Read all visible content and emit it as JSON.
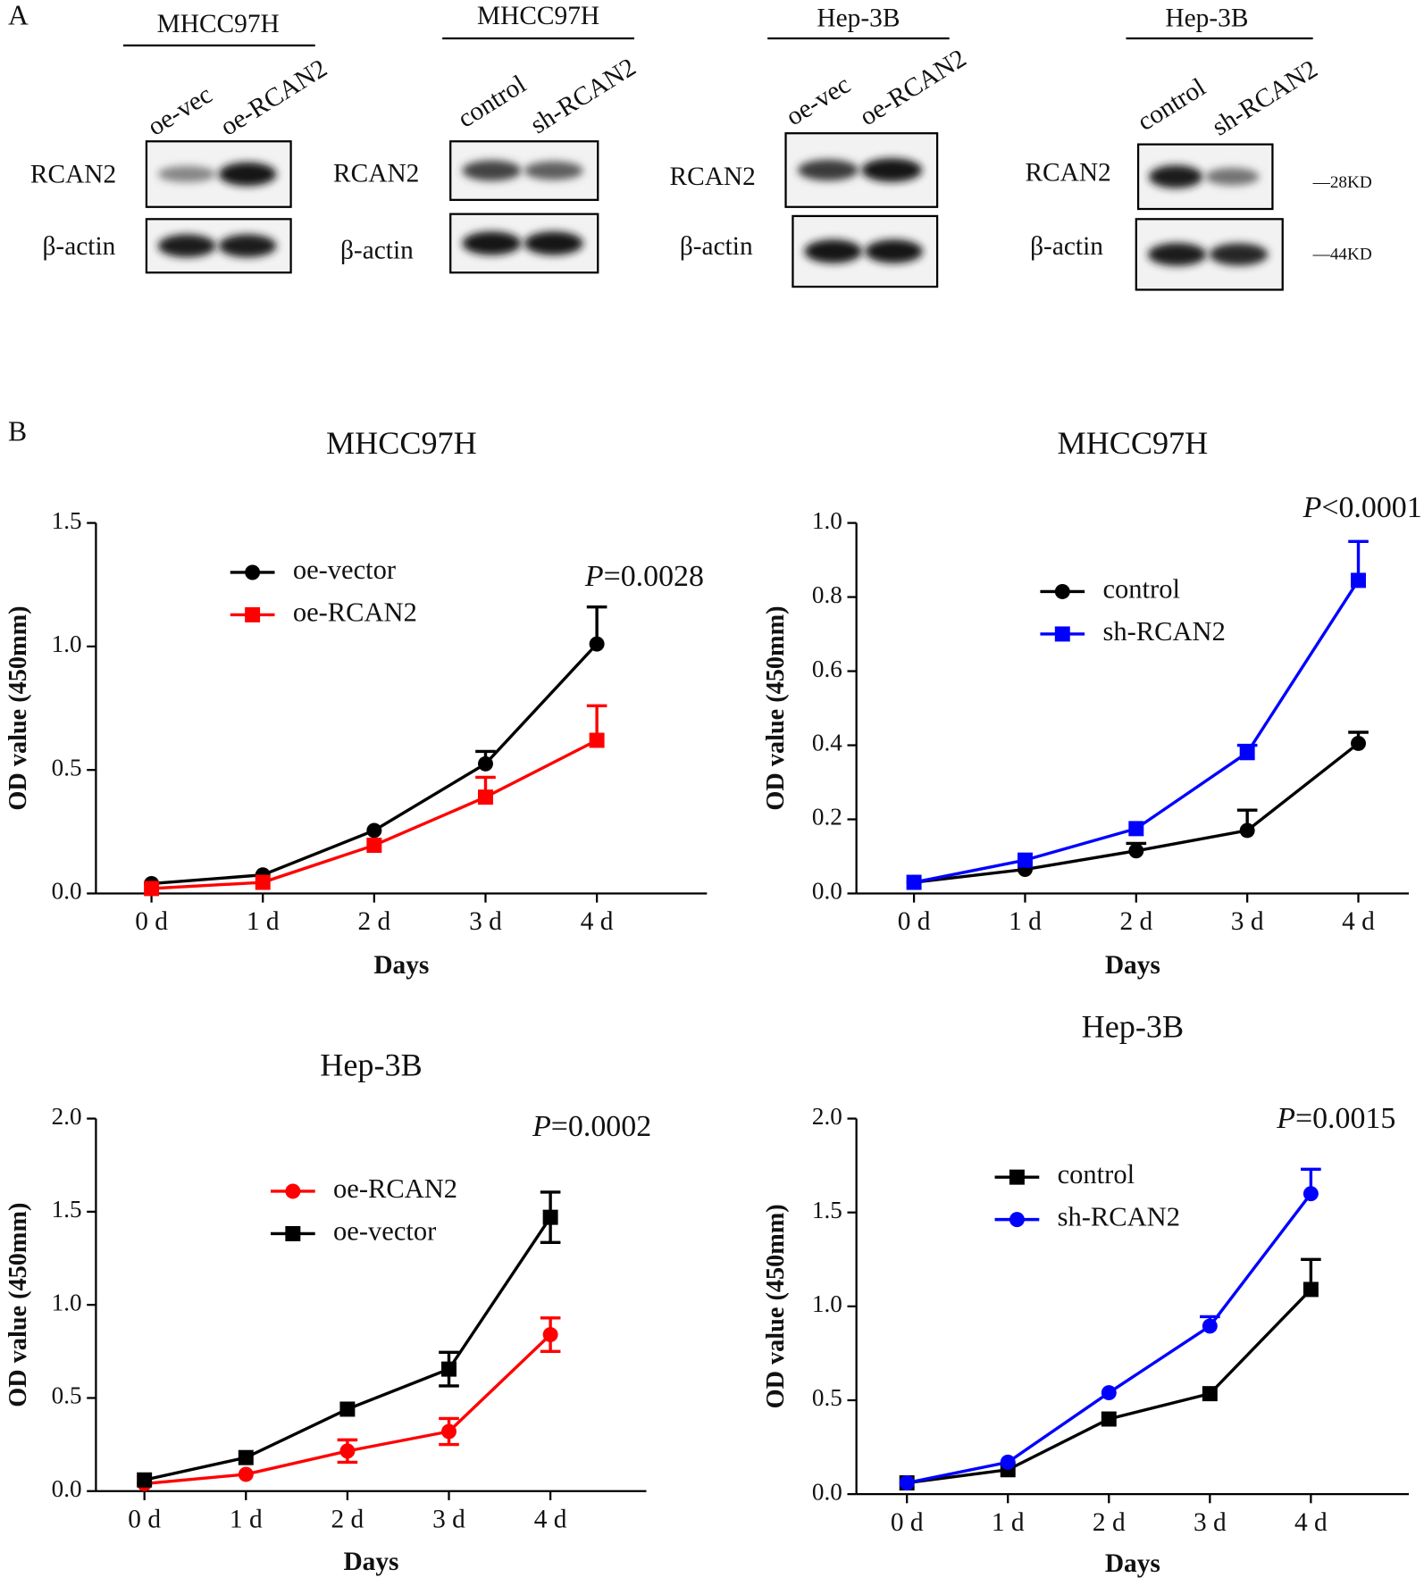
{
  "panel_labels": [
    "A",
    "B"
  ],
  "blots": [
    {
      "title": "MHCC97H",
      "lanes": [
        "oe-vec",
        "oe-RCAN2"
      ],
      "rows": [
        "RCAN2",
        "β-actin"
      ]
    },
    {
      "title": "MHCC97H",
      "lanes": [
        "control",
        "sh-RCAN2"
      ],
      "rows": [
        "RCAN2",
        "β-actin"
      ]
    },
    {
      "title": "Hep-3B",
      "lanes": [
        "oe-vec",
        "oe-RCAN2"
      ],
      "rows": [
        "RCAN2",
        "β-actin"
      ]
    },
    {
      "title": "Hep-3B",
      "lanes": [
        "control",
        "sh-RCAN2"
      ],
      "rows": [
        "RCAN2",
        "β-actin"
      ]
    }
  ],
  "markers": [
    "—28KD",
    "—44KD"
  ],
  "chart_data": [
    {
      "type": "line",
      "title": "MHCC97H",
      "x_label": "Days",
      "y_label": "OD value (450mm)",
      "annotation": [
        "P",
        "=0.0028"
      ],
      "categories": [
        "0 d",
        "1 d",
        "2 d",
        "3 d",
        "4 d"
      ],
      "ylim": [
        0,
        1.5
      ],
      "yticks": [
        {
          "value": 0,
          "label": "0.0"
        },
        0.5,
        {
          "value": 1,
          "label": "1.0"
        },
        1.5
      ],
      "error_bars": "up",
      "legend": "upper left",
      "series": [
        {
          "name": "oe-vector",
          "color": "#000000",
          "marker": "circle",
          "values": [
            0.04,
            0.075,
            0.255,
            0.525,
            1.01
          ],
          "errors": [
            0,
            0,
            0,
            0.05,
            0.15
          ]
        },
        {
          "name": "oe-RCAN2",
          "color": "#ff0000",
          "marker": "square",
          "values": [
            0.02,
            0.045,
            0.195,
            0.39,
            0.62
          ],
          "errors": [
            0,
            0,
            0,
            0.08,
            0.14
          ]
        }
      ]
    },
    {
      "type": "line",
      "title": "MHCC97H",
      "x_label": "Days",
      "y_label": "OD value (450mm)",
      "annotation": [
        "P",
        "<0.0001"
      ],
      "categories": [
        "0 d",
        "1 d",
        "2 d",
        "3 d",
        "4 d"
      ],
      "ylim": [
        0,
        1.0
      ],
      "yticks": [
        {
          "value": 0,
          "label": "0.0"
        },
        0.2,
        0.4,
        0.6,
        0.8,
        {
          "value": 1,
          "label": "1.0"
        }
      ],
      "error_bars": "up",
      "legend": "upper left",
      "series": [
        {
          "name": "control",
          "color": "#000000",
          "marker": "circle",
          "values": [
            0.03,
            0.065,
            0.115,
            0.17,
            0.405
          ],
          "errors": [
            0,
            0,
            0.02,
            0.055,
            0.03
          ]
        },
        {
          "name": "sh-RCAN2",
          "color": "#0000ff",
          "marker": "square",
          "values": [
            0.03,
            0.09,
            0.175,
            0.38,
            0.845
          ],
          "errors": [
            0,
            0,
            0,
            0.02,
            0.105
          ]
        }
      ]
    },
    {
      "type": "line",
      "title": "Hep-3B",
      "x_label": "Days",
      "y_label": "OD value (450mm)",
      "annotation": [
        "P",
        "=0.0002"
      ],
      "categories": [
        "0 d",
        "1 d",
        "2 d",
        "3 d",
        "4 d"
      ],
      "ylim": [
        0,
        2.0
      ],
      "yticks": [
        {
          "value": 0,
          "label": "0.0"
        },
        0.5,
        {
          "value": 1,
          "label": "1.0"
        },
        1.5,
        {
          "value": 2,
          "label": "2.0"
        }
      ],
      "error_bars": "both",
      "legend": "upper left",
      "series": [
        {
          "name": "oe-RCAN2",
          "color": "#ff0000",
          "marker": "circle",
          "values": [
            0.04,
            0.09,
            0.215,
            0.32,
            0.84
          ],
          "errors": [
            0,
            0,
            0.06,
            0.07,
            0.09
          ]
        },
        {
          "name": "oe-vector",
          "color": "#000000",
          "marker": "square",
          "values": [
            0.06,
            0.18,
            0.44,
            0.655,
            1.47
          ],
          "errors": [
            0,
            0,
            0,
            0.09,
            0.135
          ]
        }
      ]
    },
    {
      "type": "line",
      "title": "Hep-3B",
      "x_label": "Days",
      "y_label": "OD value (450mm)",
      "annotation": [
        "P",
        "=0.0015"
      ],
      "categories": [
        "0 d",
        "1 d",
        "2 d",
        "3 d",
        "4 d"
      ],
      "ylim": [
        0,
        2.0
      ],
      "yticks": [
        {
          "value": 0,
          "label": "0.0"
        },
        0.5,
        {
          "value": 1,
          "label": "1.0"
        },
        1.5,
        {
          "value": 2,
          "label": "2.0"
        }
      ],
      "error_bars": "up",
      "legend": "upper left",
      "series": [
        {
          "name": "control",
          "color": "#000000",
          "marker": "square",
          "values": [
            0.06,
            0.13,
            0.4,
            0.535,
            1.09
          ],
          "errors": [
            0,
            0,
            0,
            0,
            0.16
          ]
        },
        {
          "name": "sh-RCAN2",
          "color": "#0000ff",
          "marker": "circle",
          "values": [
            0.06,
            0.17,
            0.54,
            0.895,
            1.6
          ],
          "errors": [
            0,
            0,
            0,
            0.05,
            0.13
          ]
        }
      ]
    }
  ]
}
